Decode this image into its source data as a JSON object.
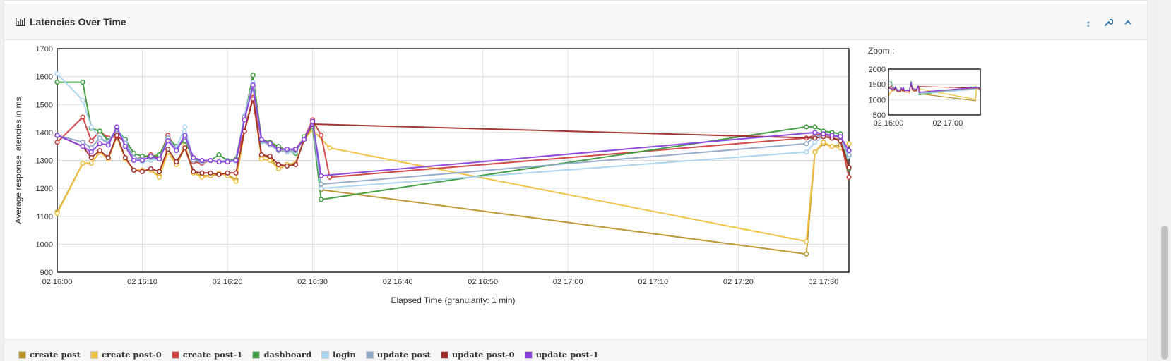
{
  "panel": {
    "title": "Latencies Over Time",
    "icons": [
      "bar-chart-icon",
      "resize-vertical-icon",
      "wrench-icon",
      "chevron-up-icon"
    ]
  },
  "zoom_label": "Zoom :",
  "chart_data": [
    {
      "type": "line",
      "title": "Latencies Over Time",
      "xlabel": "Elapsed Time (granularity: 1 min)",
      "ylabel": "Average response latencies in ms",
      "x_ticks": [
        "02 16:00",
        "02 16:10",
        "02 16:20",
        "02 16:30",
        "02 16:40",
        "02 16:50",
        "02 17:00",
        "02 17:10",
        "02 17:20",
        "02 17:30"
      ],
      "xlim": [
        0,
        93
      ],
      "ylim": [
        900,
        1700
      ],
      "y_ticks": [
        900,
        1000,
        1100,
        1200,
        1300,
        1400,
        1500,
        1600,
        1700
      ],
      "grid": true,
      "x": [
        0,
        3,
        4,
        5,
        6,
        7,
        8,
        9,
        10,
        11,
        12,
        13,
        14,
        15,
        16,
        17,
        18,
        19,
        20,
        21,
        22,
        23,
        24,
        25,
        26,
        27,
        28,
        29,
        30,
        31,
        32,
        88,
        89,
        90,
        91,
        92,
        93
      ],
      "series": [
        {
          "name": "create post",
          "color": "#b8922b",
          "values": [
            1115,
            1290,
            1290,
            1330,
            1305,
            1385,
            1305,
            1265,
            1265,
            1265,
            1245,
            1330,
            1285,
            1345,
            1255,
            1245,
            1245,
            1250,
            1250,
            1230,
            1405,
            1525,
            1315,
            1310,
            1270,
            1285,
            1290,
            1375,
            1415,
            1195,
            null,
            965,
            1330,
            1360,
            1350,
            1355,
            1275
          ]
        },
        {
          "name": "create post-0",
          "color": "#f0c040",
          "values": [
            1110,
            1290,
            1290,
            1330,
            1305,
            1385,
            1305,
            1265,
            1265,
            1265,
            1240,
            1330,
            1285,
            1355,
            1255,
            1240,
            1245,
            1255,
            1245,
            1225,
            1405,
            1525,
            1305,
            1300,
            1270,
            1285,
            1290,
            1375,
            1410,
            null,
            1345,
            1010,
            1330,
            1365,
            1350,
            1345,
            1360
          ]
        },
        {
          "name": "create post-1",
          "color": "#d04040",
          "values": [
            1365,
            1455,
            1370,
            1405,
            1380,
            1385,
            1370,
            1305,
            1310,
            1320,
            1310,
            1390,
            1340,
            1380,
            1295,
            1290,
            1300,
            1295,
            1295,
            1305,
            1405,
            1525,
            1370,
            1365,
            1340,
            1330,
            1340,
            1380,
            1445,
            1390,
            1240,
            1380,
            1390,
            1395,
            1380,
            1375,
            1240
          ]
        },
        {
          "name": "dashboard",
          "color": "#3c9a3c",
          "values": [
            1580,
            1580,
            1415,
            1405,
            1370,
            1410,
            1375,
            1325,
            1315,
            1315,
            1320,
            1380,
            1350,
            1370,
            1305,
            1300,
            1300,
            1320,
            1300,
            1305,
            1455,
            1605,
            1375,
            1365,
            1350,
            1335,
            1325,
            1385,
            1420,
            1160,
            null,
            1420,
            1420,
            1405,
            1400,
            1395,
            1270
          ]
        },
        {
          "name": "login",
          "color": "#aad4f0",
          "values": [
            1610,
            1515,
            1420,
            1380,
            1365,
            1415,
            1365,
            1310,
            1295,
            1300,
            1305,
            1370,
            1345,
            1420,
            1300,
            1295,
            1300,
            1295,
            1300,
            1295,
            1460,
            1580,
            1365,
            1355,
            1335,
            1330,
            1330,
            1375,
            1430,
            1200,
            null,
            1330,
            1365,
            1385,
            1380,
            1370,
            1315
          ]
        },
        {
          "name": "update post",
          "color": "#8fa8c8",
          "values": [
            1390,
            1365,
            1345,
            1380,
            1360,
            1410,
            1360,
            1310,
            1305,
            1310,
            1305,
            1380,
            1340,
            1385,
            1300,
            1295,
            1300,
            1295,
            1300,
            1300,
            1455,
            1560,
            1370,
            1355,
            1335,
            1335,
            1335,
            1375,
            1430,
            1215,
            null,
            1360,
            1385,
            1390,
            1390,
            1380,
            1320
          ]
        },
        {
          "name": "update post-0",
          "color": "#a02c2c",
          "values": [
            1390,
            1350,
            1310,
            1335,
            1310,
            1390,
            1310,
            1265,
            1260,
            1270,
            1260,
            1340,
            1295,
            1345,
            1260,
            1255,
            1255,
            1250,
            1255,
            1255,
            1405,
            1520,
            1320,
            1315,
            1285,
            1280,
            1285,
            1375,
            1430,
            null,
            null,
            null,
            1380,
            1385,
            1380,
            1370,
            1275
          ]
        },
        {
          "name": "update post-1",
          "color": "#8a40e0",
          "values": [
            1390,
            1350,
            1330,
            1360,
            1355,
            1420,
            1350,
            1300,
            1300,
            1315,
            1305,
            1370,
            1335,
            1390,
            1310,
            1300,
            1300,
            1295,
            1295,
            1300,
            1445,
            1570,
            1375,
            1360,
            1340,
            1340,
            1340,
            1375,
            1440,
            1245,
            null,
            null,
            1400,
            1395,
            1390,
            1385,
            1335
          ]
        }
      ]
    },
    {
      "type": "line",
      "title": "Zoom :",
      "x_ticks": [
        "02 16:00",
        "02 17:00"
      ],
      "y_ticks": [
        500,
        1000,
        1500,
        2000
      ],
      "ylim": [
        500,
        2000
      ],
      "xlim": [
        0,
        93
      ]
    }
  ]
}
